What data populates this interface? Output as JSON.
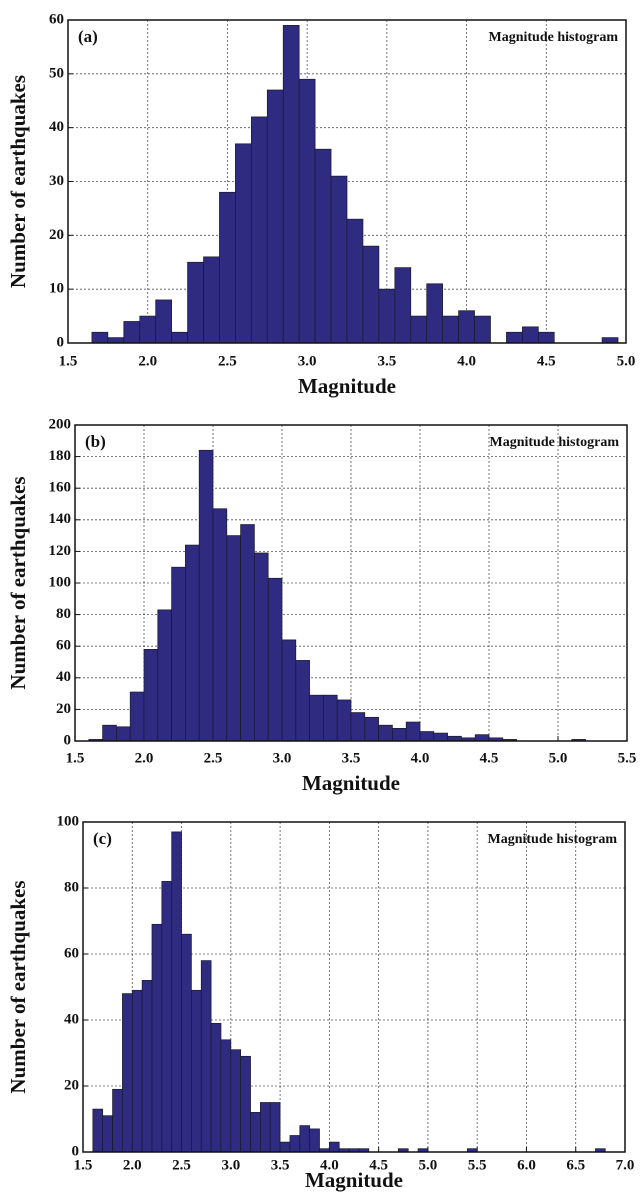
{
  "chart_data": [
    {
      "type": "histogram",
      "panel_label": "(a)",
      "annotation": "Magnitude histogram",
      "xlabel": "Magnitude",
      "ylabel": "Number of earthquakes",
      "color": "#2e2b80",
      "grid": true,
      "bins": [
        1.65,
        1.75,
        1.85,
        1.95,
        2.05,
        2.15,
        2.25,
        2.35,
        2.45,
        2.55,
        2.65,
        2.75,
        2.85,
        2.95,
        3.05,
        3.15,
        3.25,
        3.35,
        3.45,
        3.55,
        3.65,
        3.75,
        3.85,
        3.95,
        4.05,
        4.15,
        4.25,
        4.35,
        4.45,
        4.55,
        4.65,
        4.75,
        4.85,
        4.95
      ],
      "counts": [
        2,
        1,
        4,
        5,
        8,
        2,
        15,
        16,
        28,
        37,
        42,
        47,
        59,
        49,
        36,
        31,
        23,
        18,
        10,
        14,
        5,
        11,
        5,
        6,
        5,
        0,
        2,
        3,
        2,
        0,
        0,
        0,
        1
      ],
      "xlim": [
        1.5,
        5.0
      ],
      "ylim": [
        0,
        60
      ],
      "xticks": [
        1.5,
        {
          "value": 2,
          "label": "2.0"
        },
        2.5,
        {
          "value": 3,
          "label": "3.0"
        },
        3.5,
        {
          "value": 4,
          "label": "4.0"
        },
        4.5,
        {
          "value": 5,
          "label": "5.0"
        }
      ],
      "yticks": [
        0,
        10,
        20,
        30,
        40,
        50,
        60
      ]
    },
    {
      "type": "histogram",
      "panel_label": "(b)",
      "annotation": "Magnitude histogram",
      "xlabel": "Magnitude",
      "ylabel": "Number of earthquakes",
      "color": "#2e2b80",
      "grid": true,
      "bins": [
        1.6,
        1.7,
        1.8,
        1.9,
        2.0,
        2.1,
        2.2,
        2.3,
        2.4,
        2.5,
        2.6,
        2.7,
        2.8,
        2.9,
        3.0,
        3.1,
        3.2,
        3.3,
        3.4,
        3.5,
        3.6,
        3.7,
        3.8,
        3.9,
        4.0,
        4.1,
        4.2,
        4.3,
        4.4,
        4.5,
        4.6,
        4.7,
        4.8,
        4.9,
        5.0,
        5.1,
        5.2
      ],
      "counts": [
        1,
        10,
        9,
        31,
        58,
        83,
        110,
        124,
        184,
        147,
        130,
        137,
        119,
        103,
        64,
        51,
        29,
        29,
        26,
        18,
        15,
        10,
        8,
        12,
        6,
        5,
        3,
        2,
        4,
        2,
        1,
        0,
        0,
        0,
        0,
        1
      ],
      "xlim": [
        1.5,
        5.5
      ],
      "ylim": [
        0,
        200
      ],
      "xticks": [
        1.5,
        {
          "value": 2,
          "label": "2.0"
        },
        2.5,
        {
          "value": 3,
          "label": "3.0"
        },
        3.5,
        {
          "value": 4,
          "label": "4.0"
        },
        4.5,
        {
          "value": 5,
          "label": "5.0"
        },
        5.5
      ],
      "yticks": [
        0,
        20,
        40,
        60,
        80,
        100,
        120,
        140,
        160,
        180,
        200
      ]
    },
    {
      "type": "histogram",
      "panel_label": "(c)",
      "annotation": "Magnitude histogram",
      "xlabel": "Magnitude",
      "ylabel": "Number of earthquakes",
      "color": "#2e2b80",
      "grid": true,
      "bins": [
        1.6,
        1.7,
        1.8,
        1.9,
        2.0,
        2.1,
        2.2,
        2.3,
        2.4,
        2.5,
        2.6,
        2.7,
        2.8,
        2.9,
        3.0,
        3.1,
        3.2,
        3.3,
        3.4,
        3.5,
        3.6,
        3.7,
        3.8,
        3.9,
        4.0,
        4.1,
        4.2,
        4.3,
        4.4,
        4.5,
        4.6,
        4.7,
        4.8,
        4.9,
        5.0,
        5.1,
        5.2,
        5.3,
        5.4,
        5.5,
        5.6,
        5.7,
        5.8,
        5.9,
        6.0,
        6.1,
        6.2,
        6.3,
        6.4,
        6.5,
        6.6,
        6.7,
        6.8
      ],
      "counts": [
        13,
        11,
        19,
        48,
        49,
        52,
        69,
        82,
        97,
        66,
        49,
        58,
        39,
        34,
        31,
        29,
        12,
        15,
        15,
        3,
        5,
        8,
        7,
        1,
        3,
        1,
        1,
        1,
        0,
        0,
        0,
        1,
        0,
        1,
        0,
        0,
        0,
        0,
        1,
        0,
        0,
        0,
        0,
        0,
        0,
        0,
        0,
        0,
        0,
        0,
        0,
        1
      ],
      "xlim": [
        1.5,
        7.0
      ],
      "ylim": [
        0,
        100
      ],
      "xticks": [
        1.5,
        {
          "value": 2,
          "label": "2.0"
        },
        2.5,
        {
          "value": 3,
          "label": "3.0"
        },
        3.5,
        {
          "value": 4,
          "label": "4.0"
        },
        4.5,
        {
          "value": 5,
          "label": "5.0"
        },
        5.5,
        {
          "value": 6,
          "label": "6.0"
        },
        6.5,
        {
          "value": 7,
          "label": "7.0"
        }
      ],
      "yticks": [
        0,
        20,
        40,
        60,
        80,
        100
      ]
    }
  ]
}
